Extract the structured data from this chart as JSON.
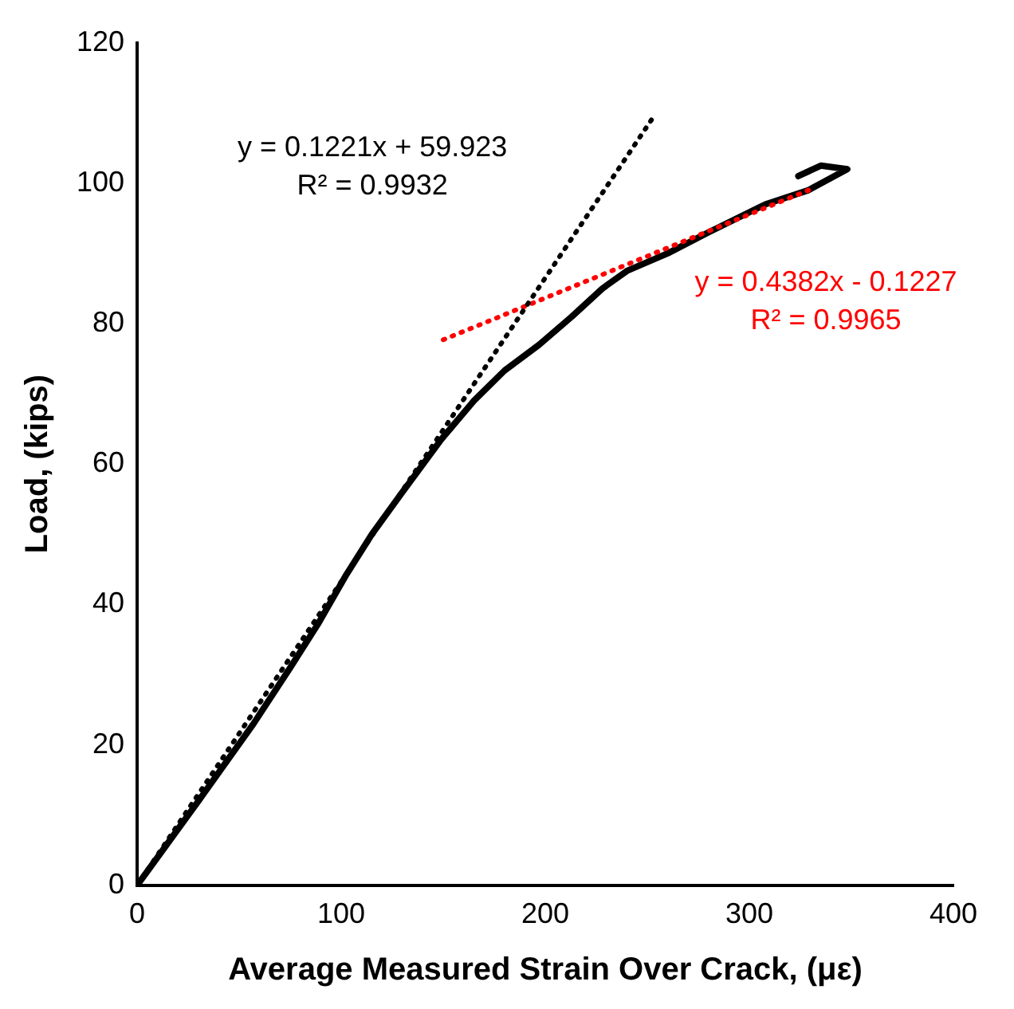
{
  "chart_data": {
    "type": "line",
    "xlabel": "Average Measured Strain Over Crack, (με)",
    "ylabel": "Load, (kips)",
    "xlim": [
      0,
      400
    ],
    "xticks": [
      0,
      100,
      200,
      300,
      400
    ],
    "ylim": [
      0,
      120
    ],
    "yticks": [
      0,
      20,
      40,
      60,
      80,
      100,
      120
    ],
    "grid": false,
    "legend": false,
    "marker": "none",
    "series": [
      {
        "color": "#000000",
        "line_style": "solid",
        "x": [
          0,
          10,
          30,
          57,
          75,
          89,
          102,
          115,
          130,
          149,
          165,
          180,
          197,
          213,
          228,
          240,
          260,
          280,
          308,
          329,
          348,
          335,
          324
        ],
        "values": [
          0,
          4,
          12,
          23,
          31,
          37.4,
          44,
          50,
          56,
          63.5,
          69,
          73.3,
          77,
          81,
          85,
          87.5,
          90,
          93,
          97,
          99,
          102,
          102.5,
          101
        ]
      },
      {
        "color": "#000000",
        "line_style": "dotted",
        "x": [
          0,
          252
        ],
        "values": [
          0,
          109
        ]
      },
      {
        "color": "#ff0000",
        "line_style": "dotted",
        "x": [
          150,
          329
        ],
        "values": [
          77.7,
          99
        ]
      }
    ],
    "annotations": [
      "y = 0.1221x + 59.923\nR² = 0.9932",
      "y = 0.4382x - 0.1227\nR² = 0.9965"
    ]
  }
}
